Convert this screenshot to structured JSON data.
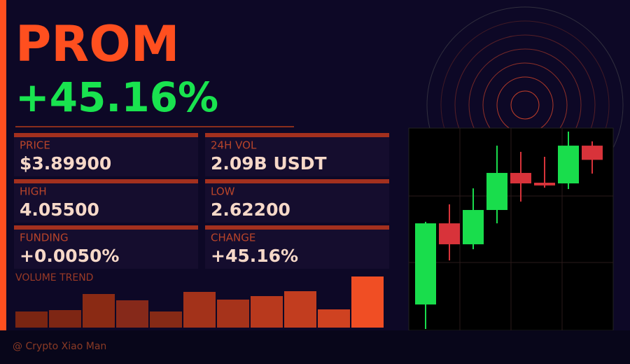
{
  "header": {
    "symbol": "PROM",
    "change": "+45.16%"
  },
  "stats": [
    {
      "label": "PRICE",
      "value": "$3.89900"
    },
    {
      "label": "24H VOL",
      "value": "2.09B USDT"
    },
    {
      "label": "HIGH",
      "value": "4.05500"
    },
    {
      "label": "LOW",
      "value": "2.62200"
    },
    {
      "label": "FUNDING",
      "value": "+0.0050%"
    },
    {
      "label": "CHANGE",
      "value": "+45.16%"
    }
  ],
  "footer": {
    "credit": "@ Crypto Xiao Man"
  },
  "chart_data": [
    {
      "type": "bar",
      "title": "VOLUME TREND",
      "values": [
        23,
        25,
        48,
        39,
        23,
        51,
        40,
        45,
        52,
        26,
        73
      ],
      "colors": [
        "#7a2512",
        "#7e2614",
        "#8a2a14",
        "#86291a",
        "#862a16",
        "#a3321a",
        "#a6331b",
        "#b8391d",
        "#c23d1f",
        "#cf4221",
        "#f04e24"
      ],
      "ylim": [
        0,
        73
      ]
    },
    {
      "type": "candlestick",
      "open": [
        2.8,
        3.389,
        3.237,
        3.486,
        3.755,
        3.684,
        3.679,
        3.953
      ],
      "high": [
        3.4,
        3.527,
        3.643,
        3.953,
        3.908,
        3.872,
        4.055,
        3.984
      ],
      "low": [
        2.622,
        3.12,
        3.201,
        3.389,
        3.547,
        3.648,
        3.638,
        3.75
      ],
      "close": [
        3.389,
        3.237,
        3.486,
        3.755,
        3.679,
        3.664,
        3.953,
        3.85
      ],
      "up_color": "#19dd4c",
      "down_color": "#d8333a",
      "ylim": [
        2.622,
        4.055
      ]
    }
  ]
}
